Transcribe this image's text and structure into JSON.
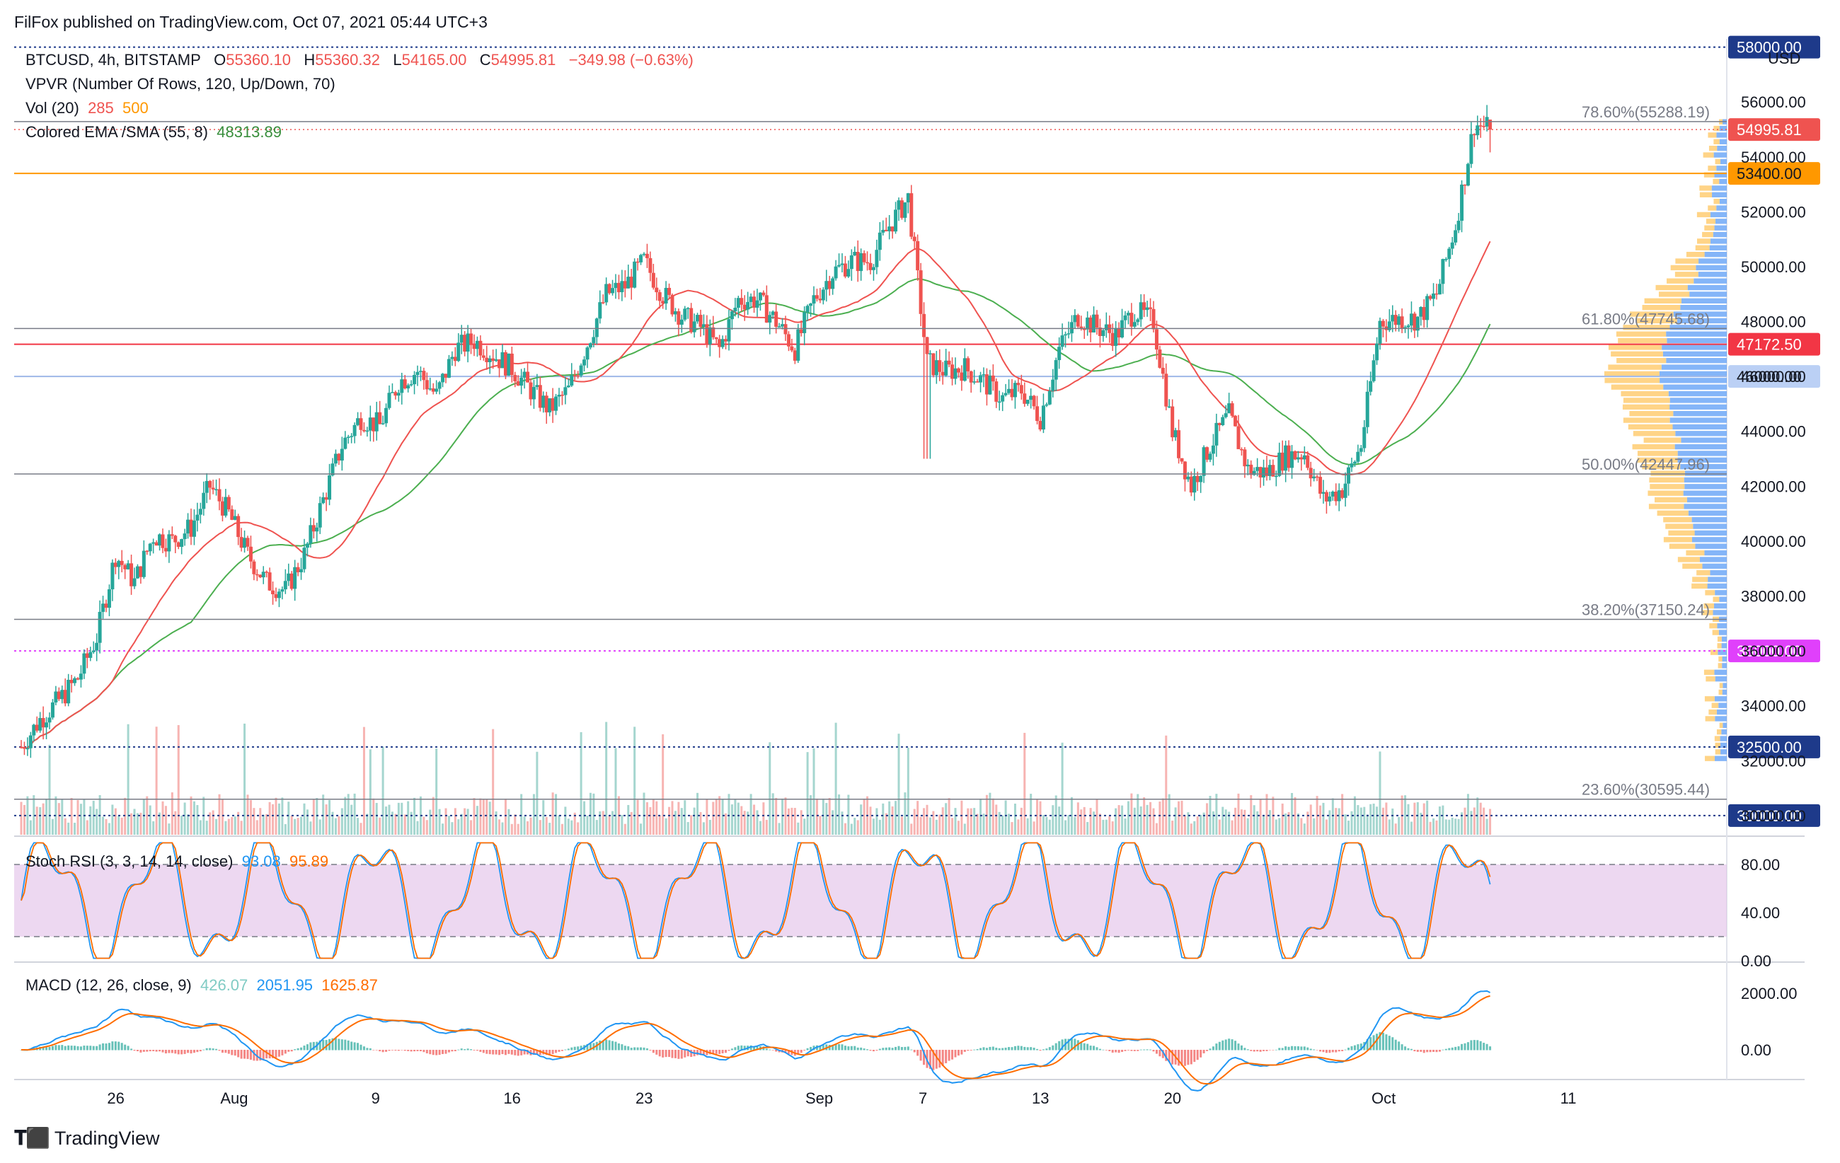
{
  "header": {
    "publisher_line": "FilFox published on TradingView.com, Oct 07, 2021 05:44 UTC+3"
  },
  "legend": {
    "symbol": "BTCUSD, 4h, BITSTAMP",
    "o_label": "O",
    "o_value": "55360.10",
    "h_label": "H",
    "h_value": "55360.32",
    "l_label": "L",
    "l_value": "54165.00",
    "c_label": "C",
    "c_value": "54995.81",
    "change": "−349.98 (−0.63%)",
    "vpvr": "VPVR (Number Of Rows, 120, Up/Down, 70)",
    "vol_label": "Vol (20)",
    "vol_value1": "285",
    "vol_value2": "500",
    "ema_label": "Colored EMA /SMA (55, 8)",
    "ema_value": "48313.89",
    "stoch_label": "Stoch RSI (3, 3, 14, 14, close)",
    "stoch_k": "93.08",
    "stoch_d": "95.89",
    "macd_label": "MACD (12, 26, close, 9)",
    "macd_hist": "426.07",
    "macd_line": "2051.95",
    "macd_signal": "1625.87"
  },
  "currency": "USD",
  "colors": {
    "up": "#26a69a",
    "down": "#ef5350",
    "ema": "#4caf50",
    "sma": "#ef5350",
    "vpvr_up": "#5b9cf6",
    "vpvr_down": "#ffc55f",
    "stoch_k": "#2196f3",
    "stoch_d": "#ff6d00",
    "stoch_band": "#e1bee7",
    "macd_line": "#2196f3",
    "macd_signal": "#ff6d00",
    "orange_line": "#ff9800",
    "red_line": "#f23645",
    "magenta_line": "#e040fb"
  },
  "footer": {
    "brand": "TradingView"
  },
  "chart_data": [
    {
      "type": "candlestick",
      "title": "BTCUSD, 4h, BITSTAMP",
      "ylim": [
        29300,
        58300
      ],
      "y_ticks": [
        "56000.00",
        "54000.00",
        "52000.00",
        "50000.00",
        "48000.00",
        "46000.00",
        "44000.00",
        "42000.00",
        "40000.00",
        "38000.00",
        "36000.00",
        "34000.00",
        "32000.00",
        "30000.00"
      ],
      "x_ticks": [
        "26",
        "Aug",
        "9",
        "16",
        "23",
        "Sep",
        "7",
        "13",
        "20",
        "Oct",
        "11"
      ],
      "close_path": [
        [
          "Jul 21",
          32500
        ],
        [
          "Jul 22",
          33500
        ],
        [
          "Jul 23",
          34200
        ],
        [
          "Jul 24",
          35000
        ],
        [
          "Jul 25",
          36500
        ],
        [
          "Jul 26",
          39500
        ],
        [
          "Jul 27",
          38500
        ],
        [
          "Jul 28",
          40200
        ],
        [
          "Jul 29",
          40000
        ],
        [
          "Jul 30",
          40500
        ],
        [
          "Jul 31",
          42000
        ],
        [
          "Aug 1",
          41000
        ],
        [
          "Aug 2",
          39500
        ],
        [
          "Aug 3",
          38500
        ],
        [
          "Aug 4",
          38200
        ],
        [
          "Aug 5",
          39500
        ],
        [
          "Aug 6",
          41500
        ],
        [
          "Aug 7",
          43500
        ],
        [
          "Aug 8",
          44500
        ],
        [
          "Aug 9",
          44200
        ],
        [
          "Aug 10",
          45800
        ],
        [
          "Aug 11",
          46200
        ],
        [
          "Aug 12",
          45300
        ],
        [
          "Aug 13",
          47000
        ],
        [
          "Aug 14",
          47300
        ],
        [
          "Aug 15",
          46800
        ],
        [
          "Aug 16",
          46300
        ],
        [
          "Aug 17",
          45500
        ],
        [
          "Aug 18",
          44800
        ],
        [
          "Aug 19",
          45500
        ],
        [
          "Aug 20",
          47200
        ],
        [
          "Aug 21",
          49000
        ],
        [
          "Aug 22",
          49300
        ],
        [
          "Aug 23",
          50200
        ],
        [
          "Aug 24",
          49000
        ],
        [
          "Aug 25",
          48200
        ],
        [
          "Aug 26",
          47800
        ],
        [
          "Aug 27",
          47000
        ],
        [
          "Aug 28",
          48800
        ],
        [
          "Aug 29",
          48800
        ],
        [
          "Aug 30",
          48000
        ],
        [
          "Aug 31",
          47000
        ],
        [
          "Sep 1",
          48800
        ],
        [
          "Sep 2",
          49800
        ],
        [
          "Sep 3",
          50200
        ],
        [
          "Sep 4",
          50200
        ],
        [
          "Sep 5",
          51500
        ],
        [
          "Sep 6",
          52500
        ],
        [
          "Sep 7",
          46500
        ],
        [
          "Sep 8",
          46200
        ],
        [
          "Sep 9",
          46300
        ],
        [
          "Sep 10",
          45800
        ],
        [
          "Sep 11",
          45200
        ],
        [
          "Sep 12",
          45500
        ],
        [
          "Sep 13",
          44500
        ],
        [
          "Sep 14",
          47000
        ],
        [
          "Sep 15",
          48200
        ],
        [
          "Sep 16",
          47800
        ],
        [
          "Sep 17",
          47500
        ],
        [
          "Sep 18",
          48400
        ],
        [
          "Sep 19",
          48000
        ],
        [
          "Sep 20",
          44000
        ],
        [
          "Sep 21",
          42000
        ],
        [
          "Sep 22",
          43500
        ],
        [
          "Sep 23",
          44600
        ],
        [
          "Sep 24",
          42600
        ],
        [
          "Sep 25",
          42500
        ],
        [
          "Sep 26",
          43100
        ],
        [
          "Sep 27",
          43200
        ],
        [
          "Sep 28",
          41500
        ],
        [
          "Sep 29",
          41900
        ],
        [
          "Sep 30",
          43500
        ],
        [
          "Oct 1",
          48000
        ],
        [
          "Oct 2",
          48100
        ],
        [
          "Oct 3",
          48100
        ],
        [
          "Oct 4",
          49000
        ],
        [
          "Oct 5",
          51500
        ],
        [
          "Oct 6",
          55200
        ],
        [
          "Oct 7",
          54996
        ]
      ],
      "ohlc_last": {
        "o": 55360.1,
        "h": 55360.32,
        "l": 54165.0,
        "c": 54995.81
      },
      "horizontal_levels": [
        {
          "price": 58000,
          "label": "58000.00",
          "style": "dotted",
          "color": "#1e3a8a"
        },
        {
          "price": 53400,
          "label": "53400.00",
          "style": "solid",
          "color": "#ff9800"
        },
        {
          "price": 47172.5,
          "label": "47172.50",
          "style": "solid",
          "color": "#f23645"
        },
        {
          "price": 46000,
          "label": "46000.00",
          "style": "solid",
          "color": "#9fb8e8"
        },
        {
          "price": 36000,
          "label": "36000.00",
          "style": "dotted",
          "color": "#e040fb"
        },
        {
          "price": 32500,
          "label": "32500.00",
          "style": "dotted",
          "color": "#1e3a8a"
        },
        {
          "price": 30000,
          "label": "30000.00",
          "style": "dotted",
          "color": "#1e3a8a"
        }
      ],
      "current_price_label": "54995.81",
      "fibonacci": [
        {
          "level": "78.60%",
          "price": 55288.19,
          "label": "78.60%(55288.19)"
        },
        {
          "level": "61.80%",
          "price": 47745.68,
          "label": "61.80%(47745.68)"
        },
        {
          "level": "50.00%",
          "price": 42447.96,
          "label": "50.00%(42447.96)"
        },
        {
          "level": "38.20%",
          "price": 37150.24,
          "label": "38.20%(37150.24)"
        },
        {
          "level": "23.60%",
          "price": 30595.44,
          "label": "23.60%(30595.44)"
        }
      ]
    },
    {
      "type": "line",
      "title": "Stoch RSI (3, 3, 14, 14, close)",
      "ylim": [
        0,
        100
      ],
      "y_ticks": [
        "80.00",
        "40.00",
        "0.00"
      ],
      "band": [
        20,
        80
      ],
      "last": {
        "k": 93.08,
        "d": 95.89
      }
    },
    {
      "type": "line",
      "title": "MACD (12, 26, close, 9)",
      "y_ticks": [
        "2000.00",
        "0.00"
      ],
      "last": {
        "histogram": 426.07,
        "macd": 2051.95,
        "signal": 1625.87
      }
    }
  ]
}
